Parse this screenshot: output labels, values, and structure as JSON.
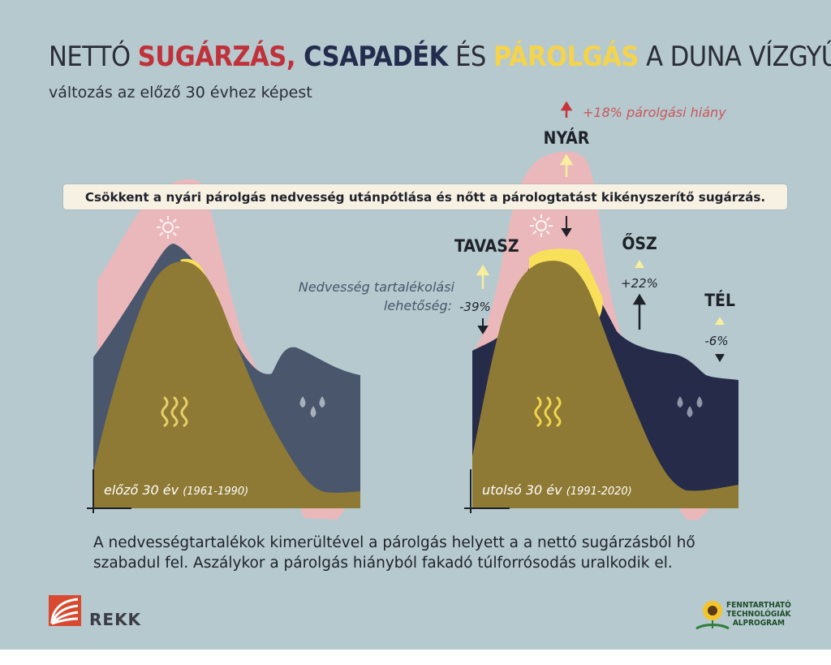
{
  "title": {
    "w1": "NETTÓ ",
    "w2": "SUGÁRZÁS,",
    "w3": " CSAPADÉK",
    "w4": " ÉS ",
    "w5": "PÁROLGÁS",
    "w6": " A DUNA VÍZGYŰJTŐJÉN",
    "colors": {
      "radiation": "#c0313a",
      "precipitation": "#242c4e",
      "evaporation": "#f5d44c",
      "text": "#2b2d36"
    }
  },
  "subtitle": "változás az előző 30 évhez képest",
  "banner": "Csökkent a nyári párolgás nedvesség utánpótlása és nőtt a párologtatást kikényszerítő sugárzás.",
  "annotations": {
    "moisture_line1": "Nedvesség tartalékolási",
    "moisture_line2": "lehetőség:",
    "deficit": "+18% párolgási hiány"
  },
  "seasons": {
    "spring": {
      "label": "TAVASZ",
      "pct": "-39%"
    },
    "summer": {
      "label": "NYÁR"
    },
    "autumn": {
      "label": "ŐSZ",
      "pct": "+22%"
    },
    "winter": {
      "label": "TÉL",
      "pct": "-6%"
    }
  },
  "periods": {
    "left": {
      "main": "előző 30 év",
      "years": "(1961-1990)"
    },
    "right": {
      "main": "utolsó 30 év",
      "years": "(1991-2020)"
    }
  },
  "bottom_text": {
    "line1": "A nedvességtartalékok kimerültével a párolgás helyett a a nettó sugárzásból hő",
    "line2": "szabadul fel. Aszálykor a párolgás hiányból fakadó túlforrósodás uralkodik el."
  },
  "logos": {
    "rekk": "REKK",
    "ftt_line1": "FENNTARTHATÓ",
    "ftt_line2": "TECHNOLÓGIÁK",
    "ftt_line3": "ALPROGRAM"
  },
  "colors": {
    "background": "#b5c9cf",
    "radiation_area": "#eab8bb",
    "precipitation_left": "#4a566c",
    "precipitation_right": "#262b4a",
    "evaporation_area": "#8e7a34",
    "evaporation_surplus": "#f9e05a",
    "arrow_up": "#f8ee9e",
    "arrow_red": "#c8333a"
  },
  "icons": [
    "sun-icon",
    "heat-waves-icon",
    "rain-drops-icon",
    "arrow-up-icon",
    "arrow-down-icon",
    "triangle-icon"
  ]
}
